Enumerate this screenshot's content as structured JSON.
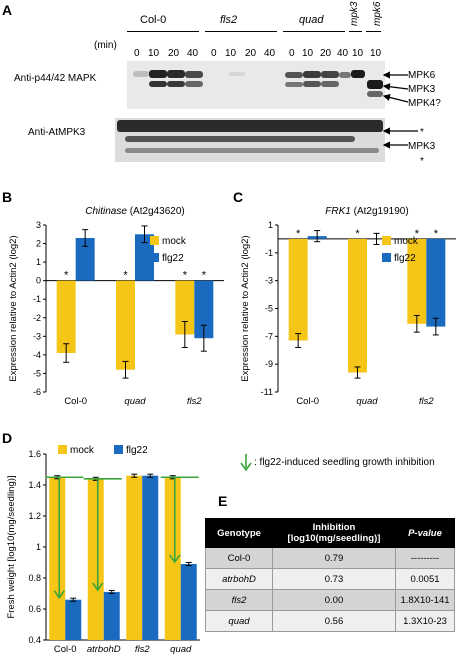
{
  "panels": {
    "A": {
      "letter": "A",
      "unit": "(min)",
      "groups": [
        "Col-0",
        "fls2",
        "quad"
      ],
      "single_lanes": [
        "mpk3",
        "mpk6"
      ],
      "timepoints": [
        "0",
        "10",
        "20",
        "40"
      ],
      "single_timepoint": "10",
      "blot1_label": "Anti-p44/42 MAPK",
      "blot2_label": "Anti-AtMPK3",
      "blot1_bands": [
        "MPK6",
        "MPK3",
        "MPK4?"
      ],
      "blot2_bands": [
        "*",
        "MPK3",
        "*"
      ]
    },
    "B": {
      "letter": "B"
    },
    "C": {
      "letter": "C"
    },
    "D": {
      "letter": "D"
    },
    "E": {
      "letter": "E",
      "headers": [
        "Genotype",
        "Inhibition",
        "[log10(mg/seedling)]",
        "P-value"
      ],
      "rows": [
        {
          "genotype": "Col-0",
          "inhibition": "0.79",
          "pvalue": "---------"
        },
        {
          "genotype": "atrbohD",
          "inhibition": "0.73",
          "pvalue": "0.0051"
        },
        {
          "genotype": "fls2",
          "inhibition": "0.00",
          "pvalue": "1.8X10-141"
        },
        {
          "genotype": "quad",
          "inhibition": "0.56",
          "pvalue": "1.3X10-23"
        }
      ]
    },
    "D_note": ": flg22-induced seedling growth inhibition"
  },
  "chart_data": [
    {
      "type": "bar",
      "title": "Chitinase (At2g43620)",
      "ylabel": "Expression relative to Actin2 (log2)",
      "ylim": [
        -6,
        3
      ],
      "yticks": [
        "3",
        "2",
        "1",
        "0",
        "-1",
        "-2",
        "-3",
        "-4",
        "-5",
        "-6"
      ],
      "categories": [
        "Col-0",
        "quad",
        "fls2"
      ],
      "series": [
        {
          "name": "mock",
          "color": "#f5c518",
          "values": [
            -3.9,
            -4.8,
            -2.9
          ],
          "errors": [
            0.5,
            0.45,
            0.7
          ],
          "stars": [
            true,
            true,
            true
          ]
        },
        {
          "name": "flg22",
          "color": "#1a6bbf",
          "values": [
            2.3,
            2.5,
            -3.1
          ],
          "errors": [
            0.45,
            0.45,
            0.7
          ],
          "stars": [
            false,
            false,
            true
          ]
        }
      ],
      "legend": "top-right"
    },
    {
      "type": "bar",
      "title": "FRK1 (At2g19190)",
      "ylabel": "Expression relative to Actin2 (log2)",
      "ylim": [
        -11,
        1
      ],
      "yticks": [
        "1",
        "-1",
        "-3",
        "-5",
        "-7",
        "-9",
        "-11"
      ],
      "categories": [
        "Col-0",
        "quad",
        "fls2"
      ],
      "series": [
        {
          "name": "mock",
          "color": "#f5c518",
          "values": [
            -7.3,
            -9.6,
            -6.1
          ],
          "errors": [
            0.5,
            0.4,
            0.6
          ],
          "stars": [
            true,
            true,
            true
          ]
        },
        {
          "name": "flg22",
          "color": "#1a6bbf",
          "values": [
            0.2,
            0.0,
            -6.3
          ],
          "errors": [
            0.4,
            0.4,
            0.6
          ],
          "stars": [
            false,
            false,
            true
          ]
        }
      ],
      "legend": "top-right"
    },
    {
      "type": "bar",
      "title": "",
      "ylabel": "Fresh weight [log10(mg/seedling)]",
      "ylim": [
        0.4,
        1.6
      ],
      "yticks": [
        "1.6",
        "1.4",
        "1.2",
        "1",
        "0.8",
        "0.6",
        "0.4"
      ],
      "categories": [
        "Col-0",
        "atrbohD",
        "fls2",
        "quad"
      ],
      "series": [
        {
          "name": "mock",
          "color": "#f5c518",
          "values": [
            1.45,
            1.44,
            1.46,
            1.45
          ],
          "errors": [
            0.01,
            0.01,
            0.01,
            0.01
          ]
        },
        {
          "name": "flg22",
          "color": "#1a6bbf",
          "values": [
            0.66,
            0.71,
            1.46,
            0.89
          ],
          "errors": [
            0.01,
            0.01,
            0.01,
            0.01
          ]
        }
      ],
      "arrows": [
        true,
        true,
        false,
        true
      ],
      "legend": "top"
    }
  ]
}
